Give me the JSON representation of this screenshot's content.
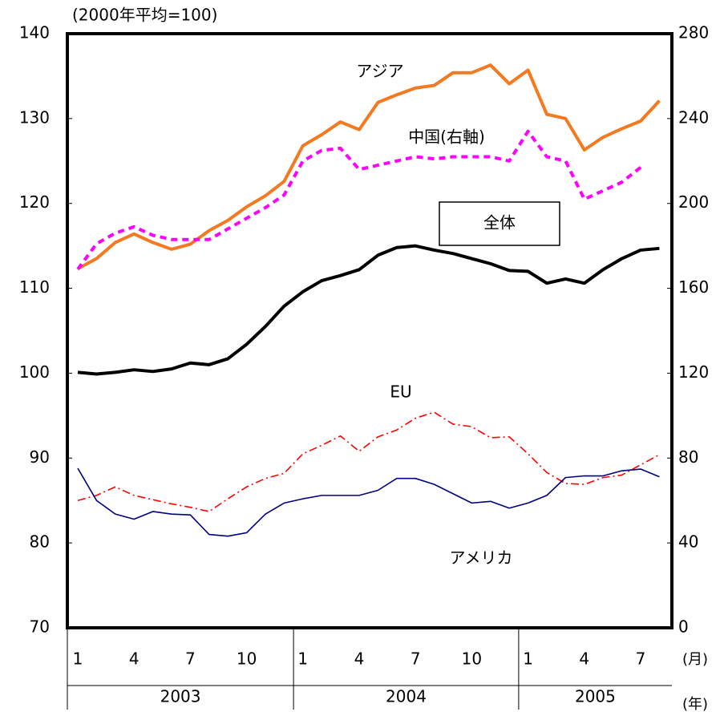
{
  "chart_data": {
    "type": "line",
    "subtitle": "(2000年平均=100)",
    "categories": [
      "1",
      null,
      null,
      "4",
      null,
      null,
      "7",
      null,
      null,
      "10",
      null,
      null,
      "1",
      null,
      null,
      "4",
      null,
      null,
      "7",
      null,
      null,
      "10",
      null,
      null,
      "1",
      null,
      null,
      "4",
      null,
      null,
      "7",
      null
    ],
    "x_unit": "(月)",
    "x_groups": [
      {
        "label": "2003",
        "count": 12
      },
      {
        "label": "2004",
        "count": 12
      },
      {
        "label": "2005",
        "count": 8
      }
    ],
    "x_group_unit": "(年)",
    "ylim": [
      70,
      140
    ],
    "yticks": [
      70,
      80,
      90,
      100,
      110,
      120,
      130,
      140
    ],
    "y2lim": [
      0,
      280
    ],
    "y2ticks": [
      0,
      40,
      80,
      120,
      160,
      200,
      240,
      280
    ],
    "grid": false,
    "series": [
      {
        "name": "アジア",
        "color": "#f47920",
        "width": 4,
        "dash": "none",
        "values": [
          112.3,
          113.5,
          115.4,
          116.4,
          115.4,
          114.6,
          115.2,
          116.8,
          118.0,
          119.6,
          120.9,
          122.6,
          126.8,
          128.1,
          129.6,
          128.7,
          131.9,
          132.8,
          133.6,
          133.9,
          135.4,
          135.4,
          136.3,
          134.1,
          135.7,
          130.5,
          130.0,
          126.3,
          127.8,
          128.8,
          129.7,
          132.1
        ]
      },
      {
        "name": "中国(右軸)",
        "color": "#ff00ff",
        "width": 4,
        "dash": "8 6",
        "axis": "y2",
        "values": [
          169,
          181,
          186,
          189,
          185,
          183,
          183,
          183,
          188,
          193,
          198,
          204,
          220,
          225,
          226,
          216,
          218,
          220,
          222,
          221,
          222,
          222,
          222,
          220,
          234,
          222,
          220,
          202,
          206,
          210,
          217,
          null
        ]
      },
      {
        "name": "全体",
        "color": "#000000",
        "width": 4,
        "dash": "none",
        "boxed": true,
        "values": [
          100.1,
          99.9,
          100.1,
          100.4,
          100.2,
          100.5,
          101.2,
          101.0,
          101.7,
          103.4,
          105.5,
          107.9,
          109.6,
          110.9,
          111.5,
          112.2,
          113.9,
          114.8,
          115.0,
          114.5,
          114.1,
          113.5,
          112.9,
          112.1,
          112.0,
          110.6,
          111.1,
          110.6,
          112.2,
          113.5,
          114.5,
          114.7
        ]
      },
      {
        "name": "EU",
        "color": "#ff0000",
        "width": 1.6,
        "dash": "10 4 2 4",
        "values": [
          85.0,
          85.6,
          86.6,
          85.6,
          85.1,
          84.6,
          84.2,
          83.7,
          85.2,
          86.6,
          87.6,
          88.2,
          90.5,
          91.5,
          92.6,
          90.8,
          92.5,
          93.3,
          94.7,
          95.4,
          94.0,
          93.7,
          92.4,
          92.5,
          90.5,
          88.3,
          87.0,
          86.9,
          87.7,
          88.0,
          89.2,
          90.4
        ]
      },
      {
        "name": "アメリカ",
        "color": "#000080",
        "width": 1.6,
        "dash": "none",
        "values": [
          88.8,
          85.0,
          83.4,
          82.8,
          83.7,
          83.4,
          83.3,
          81.0,
          80.8,
          81.2,
          83.4,
          84.7,
          85.2,
          85.6,
          85.6,
          85.6,
          86.2,
          87.6,
          87.6,
          86.9,
          85.8,
          84.7,
          84.9,
          84.1,
          84.7,
          85.6,
          87.7,
          87.9,
          87.9,
          88.5,
          88.7,
          87.8
        ]
      }
    ]
  }
}
